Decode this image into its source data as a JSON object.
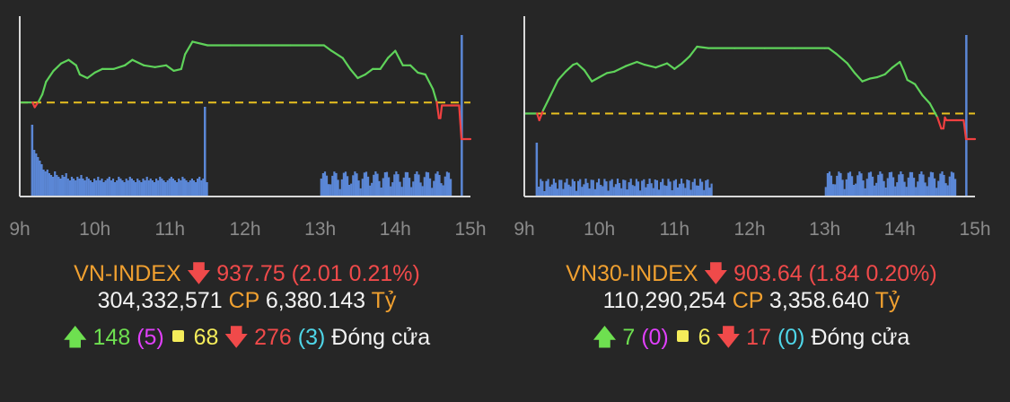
{
  "colors": {
    "background": "#262626",
    "price_up": "#5fd35a",
    "price_down": "#f04040",
    "reference_line": "#e8c020",
    "volume": "#5b87d6",
    "axis": "#d8d8d8"
  },
  "icons": {
    "up": "arrow-up-icon",
    "down": "arrow-down-icon",
    "neutral": "yellow-square-icon"
  },
  "panels": [
    {
      "index_name": "VN-INDEX",
      "value": "937.75",
      "change": "(2.01 0.21%)",
      "volume": "304,332,571",
      "cp_label": "CP",
      "turnover": "6,380.143",
      "unit": "Tỷ",
      "advancers": "148",
      "ceiling": "(5)",
      "unchanged": "68",
      "decliners": "276",
      "floor": "(3)",
      "status": "Đóng cửa"
    },
    {
      "index_name": "VN30-INDEX",
      "value": "903.64",
      "change": "(1.84 0.20%)",
      "volume": "110,290,254",
      "cp_label": "CP",
      "turnover": "3,358.640",
      "unit": "Tỷ",
      "advancers": "7",
      "ceiling": "(0)",
      "unchanged": "6",
      "decliners": "17",
      "floor": "(0)",
      "status": "Đóng cửa"
    }
  ],
  "chart_data": [
    {
      "type": "line",
      "x_tick_labels": [
        "9h",
        "10h",
        "11h",
        "12h",
        "13h",
        "14h",
        "15h"
      ],
      "x_range": [
        9.0,
        15.0
      ],
      "y_range": [
        934.6,
        944.5
      ],
      "reference": 939.76,
      "series": [
        {
          "x": [
            9.0,
            9.17,
            9.2,
            9.25,
            9.3,
            9.35,
            9.45,
            9.55,
            9.65,
            9.75,
            9.8,
            9.9,
            10.0,
            10.1,
            10.25,
            10.4,
            10.5,
            10.65,
            10.8,
            10.95,
            11.05,
            11.15,
            11.2,
            11.3,
            11.5,
            11.8,
            12.2,
            12.6,
            13.0,
            13.05,
            13.15,
            13.3,
            13.4,
            13.5,
            13.6,
            13.7,
            13.8,
            13.9,
            14.0,
            14.05,
            14.1,
            14.2,
            14.3,
            14.4,
            14.5,
            14.55,
            14.58,
            14.6,
            14.62,
            14.75,
            14.85,
            14.88,
            15.0
          ],
          "y": [
            939.76,
            939.76,
            939.5,
            939.8,
            940.2,
            940.9,
            941.5,
            941.9,
            942.1,
            941.8,
            941.3,
            941.1,
            941.4,
            941.6,
            941.6,
            941.8,
            942.1,
            941.8,
            941.7,
            941.8,
            941.5,
            941.6,
            942.4,
            943.1,
            942.9,
            942.9,
            942.9,
            942.9,
            942.9,
            942.9,
            942.6,
            942.2,
            941.6,
            941.1,
            941.3,
            941.6,
            941.6,
            942.2,
            942.6,
            942.2,
            941.8,
            941.8,
            941.4,
            941.3,
            940.5,
            939.8,
            938.9,
            938.9,
            939.6,
            939.6,
            939.6,
            937.75,
            937.75
          ]
        }
      ],
      "volume": [
        52,
        48,
        44,
        40,
        36,
        30,
        28,
        30,
        26,
        24,
        22,
        28,
        24,
        22,
        20,
        24,
        22,
        26,
        20,
        18,
        22,
        20,
        18,
        22,
        20,
        24,
        20,
        18,
        22,
        20,
        18,
        16,
        20,
        18,
        22,
        18,
        20,
        16,
        18,
        20,
        22,
        18,
        20,
        16,
        18,
        22,
        20,
        18,
        16,
        20,
        18,
        22,
        20,
        18,
        16,
        20,
        18,
        16,
        20,
        18,
        22,
        18,
        20,
        18,
        16,
        20,
        18,
        22,
        20,
        18,
        16,
        18,
        20,
        22,
        20,
        18,
        16,
        20,
        18,
        22,
        20,
        18,
        16,
        18,
        20,
        18,
        16,
        20,
        22,
        18,
        20,
        18,
        16,
        20,
        18,
        22,
        20,
        18,
        16,
        18,
        20,
        18,
        16,
        20,
        18,
        16,
        20,
        18,
        22,
        20,
        18,
        16,
        20,
        18,
        22,
        20,
        18,
        16,
        14,
        12,
        10,
        8,
        6,
        4,
        3,
        2,
        2,
        2,
        2,
        2,
        2,
        2,
        2,
        2,
        2,
        2,
        2,
        2,
        2,
        2,
        2,
        2,
        2,
        2,
        2,
        2,
        2,
        2,
        2,
        2,
        2,
        2,
        2,
        2,
        2,
        2,
        2,
        2,
        2,
        2,
        2,
        2,
        2,
        2,
        2,
        2,
        2,
        2,
        2,
        2,
        2,
        2,
        2,
        2,
        2,
        2,
        2,
        2,
        2,
        2,
        2,
        2,
        2,
        2,
        2,
        2,
        2,
        2,
        2,
        2,
        2,
        2,
        2,
        2,
        2,
        2,
        2,
        2,
        2,
        2,
        2,
        2,
        2,
        2,
        2,
        2,
        2,
        2,
        2,
        2,
        2,
        2,
        2,
        2,
        2,
        2,
        2,
        2,
        2,
        2,
        2,
        2,
        2,
        2,
        2,
        2,
        2,
        2,
        2,
        2,
        2,
        2,
        2,
        2,
        2,
        2,
        2,
        2,
        2,
        2,
        2,
        2,
        2,
        2,
        2,
        2,
        2,
        2,
        2,
        2,
        2,
        2,
        2,
        2,
        2,
        2,
        2,
        2,
        2,
        2,
        2,
        2,
        2,
        2,
        2,
        2,
        2,
        2,
        2,
        2,
        2,
        2,
        2,
        2,
        2,
        2,
        2,
        2,
        2,
        2,
        2,
        2,
        2,
        2,
        2,
        2,
        2,
        2,
        2,
        2,
        2,
        2,
        2,
        2,
        2,
        2,
        2,
        2,
        2,
        2,
        2,
        2,
        2,
        2,
        2,
        2,
        2,
        2,
        2,
        2,
        2,
        2,
        2,
        2,
        2,
        2,
        2,
        2,
        2,
        2,
        2,
        2,
        2,
        2,
        2,
        2,
        2,
        2,
        2,
        2,
        2,
        2,
        2,
        2,
        2,
        2,
        2,
        2,
        2,
        2,
        2,
        2,
        2,
        2,
        2,
        2,
        2,
        2,
        2,
        2,
        2,
        2,
        2,
        2,
        2,
        2,
        2,
        2,
        2,
        2,
        2,
        2,
        2,
        2,
        2,
        2,
        2,
        2,
        2,
        2,
        2,
        2,
        2,
        2,
        2,
        2,
        2,
        2,
        2,
        2,
        2,
        2,
        2,
        2,
        2,
        2,
        2,
        2,
        2,
        2,
        2,
        2,
        2,
        2,
        2,
        2,
        2,
        2,
        2,
        2,
        2,
        2,
        2,
        2,
        2,
        2,
        2,
        2,
        2,
        2,
        2,
        2,
        2,
        2,
        2,
        2,
        2,
        2,
        2,
        2,
        2,
        2,
        2,
        2,
        2,
        2,
        2,
        2,
        2,
        2,
        2,
        2,
        2,
        2,
        2,
        2,
        2,
        2,
        2,
        2,
        2,
        2,
        2,
        2,
        2,
        2,
        2,
        2,
        2,
        2,
        2,
        2,
        2,
        2,
        2,
        2,
        2,
        2,
        2,
        2,
        2,
        2,
        2,
        2,
        2,
        2,
        2
      ],
      "volume_spikes": [
        [
          9.15,
          80
        ],
        [
          11.45,
          100
        ],
        [
          14.87,
          180
        ]
      ]
    },
    {
      "type": "line",
      "x_tick_labels": [
        "9h",
        "10h",
        "11h",
        "12h",
        "13h",
        "14h",
        "15h"
      ],
      "x_range": [
        9.0,
        15.0
      ],
      "y_range": [
        899.5,
        912.5
      ],
      "reference": 905.48,
      "series": [
        {
          "x": [
            9.0,
            9.17,
            9.2,
            9.25,
            9.35,
            9.45,
            9.55,
            9.65,
            9.7,
            9.8,
            9.9,
            10.0,
            10.1,
            10.2,
            10.35,
            10.5,
            10.6,
            10.75,
            10.9,
            11.0,
            11.1,
            11.2,
            11.3,
            11.45,
            11.8,
            12.2,
            12.6,
            13.0,
            13.05,
            13.15,
            13.3,
            13.4,
            13.5,
            13.6,
            13.7,
            13.8,
            13.9,
            14.0,
            14.05,
            14.1,
            14.2,
            14.3,
            14.4,
            14.5,
            14.55,
            14.58,
            14.6,
            14.62,
            14.75,
            14.85,
            14.88,
            15.0
          ],
          "y": [
            905.48,
            905.48,
            905.0,
            905.7,
            906.8,
            907.9,
            908.5,
            909.0,
            909.1,
            908.6,
            907.8,
            908.1,
            908.4,
            908.5,
            908.9,
            909.2,
            909.0,
            908.8,
            909.1,
            908.7,
            909.1,
            909.6,
            910.3,
            910.2,
            910.2,
            910.2,
            910.2,
            910.2,
            910.2,
            909.8,
            909.1,
            908.4,
            907.8,
            908.0,
            908.1,
            908.3,
            908.8,
            909.2,
            908.6,
            907.9,
            907.6,
            906.8,
            906.2,
            905.2,
            904.4,
            904.4,
            905.2,
            905.0,
            905.0,
            905.0,
            903.64,
            903.64
          ]
        }
      ],
      "volume": [],
      "volume_spikes": [
        [
          9.15,
          60
        ],
        [
          14.87,
          180
        ]
      ]
    }
  ]
}
